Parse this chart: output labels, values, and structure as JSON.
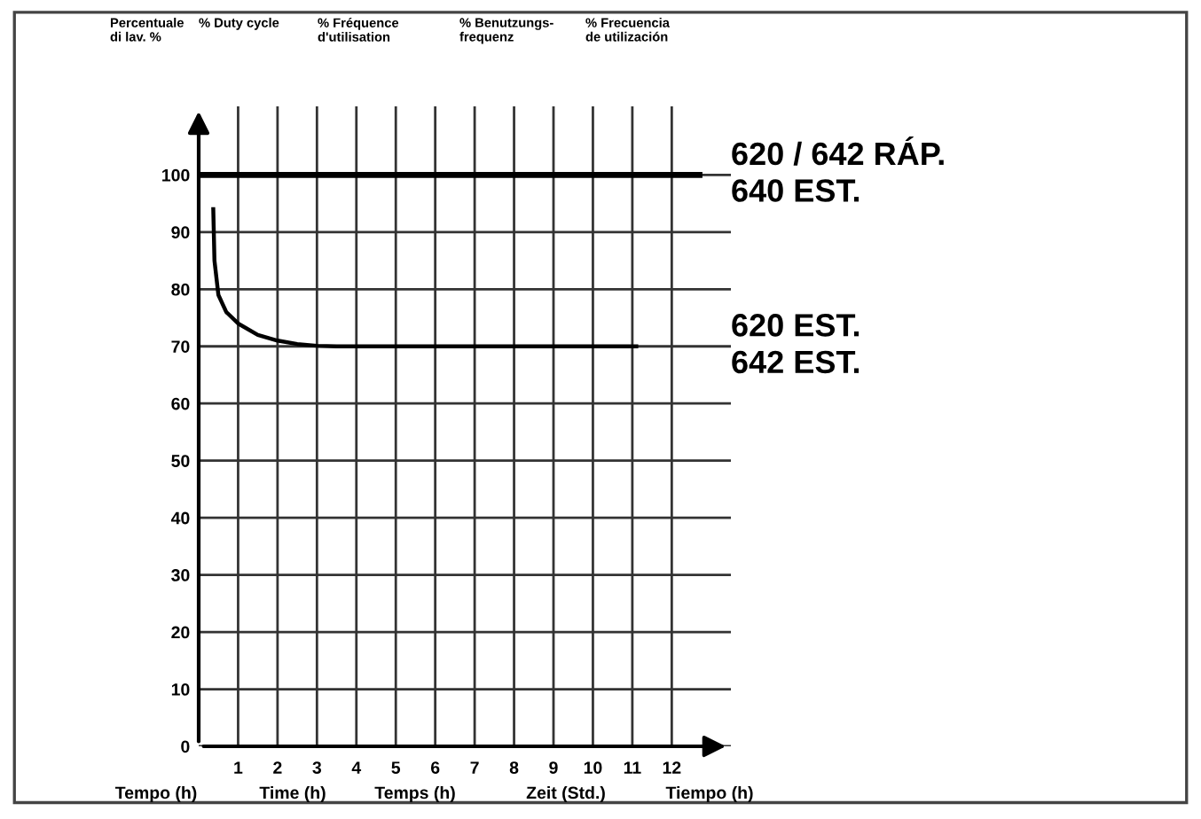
{
  "chart_data": {
    "type": "line",
    "x": [
      0.37,
      0.4,
      0.5,
      0.7,
      1,
      1.5,
      2,
      2.5,
      3,
      3.5,
      4.5,
      7,
      11.1
    ],
    "series": [
      {
        "name": "620 / 642 RÁP.\n640 EST.",
        "color": "#000000",
        "x": [
          0,
          12.7
        ],
        "values": [
          100,
          100
        ]
      },
      {
        "name": "620 EST.\n642 EST.",
        "color": "#000000",
        "values": [
          94,
          85,
          79,
          76,
          74,
          72,
          71,
          70.4,
          70.1,
          70,
          70,
          70,
          70
        ]
      }
    ],
    "xlim": [
      0,
      13.5
    ],
    "ylim": [
      0,
      112
    ],
    "xticks": [
      1,
      2,
      3,
      4,
      5,
      6,
      7,
      8,
      9,
      10,
      11,
      12
    ],
    "yticks": [
      0,
      10,
      20,
      30,
      40,
      50,
      60,
      70,
      80,
      90,
      100
    ],
    "grid": true,
    "marker": "none",
    "line_style": "solid",
    "annotations": [
      "Percentuale\ndi lav. %",
      "% Duty cycle",
      "% Fréquence\nd'utilisation",
      "% Benutzungs-\nfrequenz",
      "% Frecuencia\nde utilización",
      "Tempo (h)",
      "Time (h)",
      "Temps (h)",
      "Zeit (Std.)",
      "Tiempo (h)"
    ]
  }
}
